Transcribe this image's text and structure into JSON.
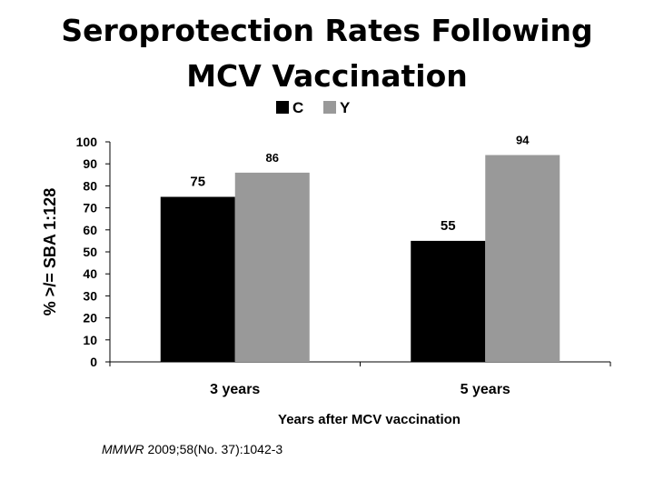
{
  "title": {
    "line1": "Seroprotection Rates Following",
    "line2": "MCV Vaccination"
  },
  "citation": {
    "journal": "MMWR",
    "detail": " 2009;58(No. 37):1042-3"
  },
  "colors": {
    "series_C": "#000000",
    "series_Y": "#999999",
    "axis": "#000000"
  },
  "chart_data": {
    "type": "bar",
    "title": "Seroprotection Rates Following MCV Vaccination",
    "xlabel": "Years after MCV vaccination",
    "ylabel": "% >/= SBA 1:128",
    "categories": [
      "3 years",
      "5 years"
    ],
    "series": [
      {
        "name": "C",
        "values": [
          75,
          55
        ]
      },
      {
        "name": "Y",
        "values": [
          86,
          94
        ]
      }
    ],
    "ylim": [
      0,
      100
    ],
    "yticks": [
      0,
      10,
      20,
      30,
      40,
      50,
      60,
      70,
      80,
      90,
      100
    ],
    "grid": false,
    "legend_position": "top-center"
  }
}
